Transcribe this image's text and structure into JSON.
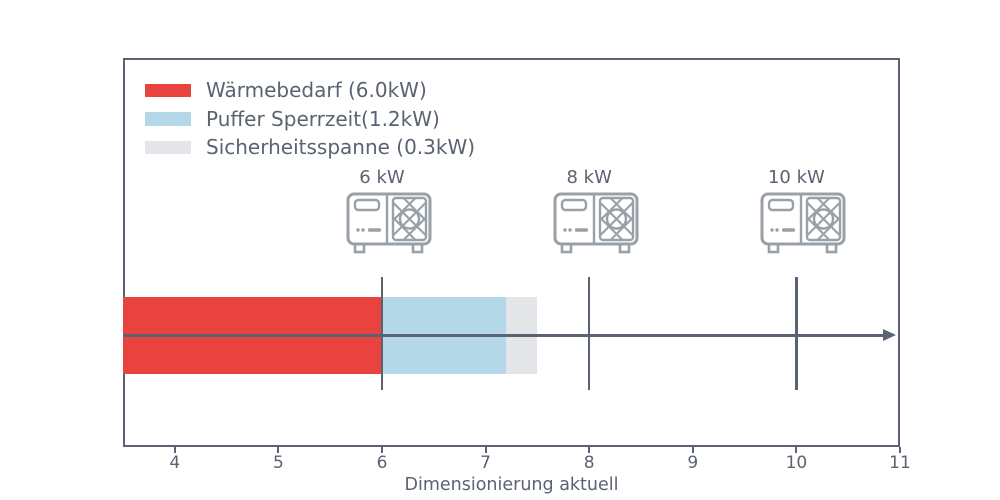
{
  "figure": {
    "background": "#ffffff",
    "frame_color": "#5a6372",
    "text_color": "#5a6372",
    "icon_color": "#98a0a8"
  },
  "legend": {
    "items": [
      {
        "label": "Wärmebedarf (6.0kW)",
        "color": "#e94340"
      },
      {
        "label": "Puffer Sperrzeit(1.2kW)",
        "color": "#b5d8e9"
      },
      {
        "label": "Sicherheitsspanne (0.3kW)",
        "color": "#e3e5e9"
      }
    ]
  },
  "chart_data": {
    "type": "bar",
    "orientation": "horizontal",
    "title": "",
    "xlabel": "Dimensionierung aktuell",
    "xlim": [
      3.5,
      11
    ],
    "xticks": [
      "4",
      "5",
      "6",
      "7",
      "8",
      "9",
      "10",
      "11"
    ],
    "grid": false,
    "legend_position": "upper-left",
    "axis_arrow": true,
    "segments": [
      {
        "name": "Wärmebedarf",
        "start_kw": 3.5,
        "end_kw": 6.0,
        "size_kw": 6.0,
        "color": "#e94340"
      },
      {
        "name": "Puffer Sperrzeit",
        "start_kw": 6.0,
        "end_kw": 7.2,
        "size_kw": 1.2,
        "color": "#b5d8e9"
      },
      {
        "name": "Sicherheitsspanne",
        "start_kw": 7.2,
        "end_kw": 7.5,
        "size_kw": 0.3,
        "color": "#e3e5e9"
      }
    ],
    "heat_pump_markers": [
      {
        "label": "6 kW",
        "value": 6
      },
      {
        "label": "8 kW",
        "value": 8
      },
      {
        "label": "10 kW",
        "value": 10
      }
    ]
  }
}
